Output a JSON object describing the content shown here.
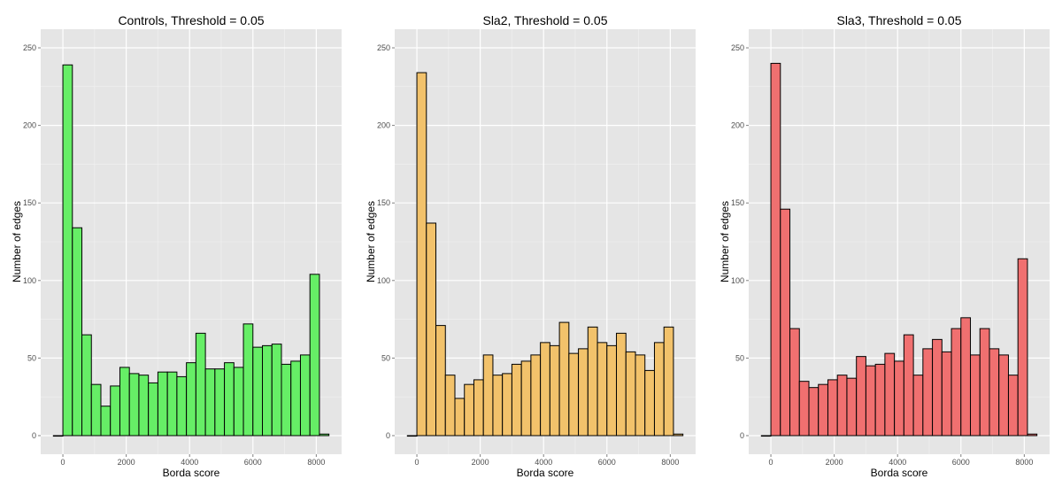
{
  "chart_data": [
    {
      "type": "bar",
      "title": "Controls, Threshold =  0.05",
      "xlabel": "Borda score",
      "ylabel": "Number of edges",
      "color": "#66ee66",
      "binwidth": 300,
      "xlim": [
        -700,
        8800
      ],
      "ylim": [
        -12,
        262
      ],
      "xticks": [
        0,
        2000,
        4000,
        6000,
        8000
      ],
      "yticks": [
        0,
        50,
        100,
        150,
        200,
        250
      ],
      "x": [
        -150,
        150,
        450,
        750,
        1050,
        1350,
        1650,
        1950,
        2250,
        2550,
        2850,
        3150,
        3450,
        3750,
        4050,
        4350,
        4650,
        4950,
        5250,
        5550,
        5850,
        6150,
        6450,
        6750,
        7050,
        7350,
        7650,
        7950,
        8250
      ],
      "values": [
        0,
        239,
        134,
        65,
        33,
        19,
        32,
        44,
        40,
        39,
        34,
        41,
        41,
        38,
        47,
        66,
        43,
        43,
        47,
        44,
        72,
        57,
        58,
        59,
        46,
        48,
        52,
        104,
        1
      ]
    },
    {
      "type": "bar",
      "title": "Sla2, Threshold =  0.05",
      "xlabel": "Borda score",
      "ylabel": "Number of edges",
      "color": "#f2c26b",
      "binwidth": 300,
      "xlim": [
        -700,
        8800
      ],
      "ylim": [
        -12,
        262
      ],
      "xticks": [
        0,
        2000,
        4000,
        6000,
        8000
      ],
      "yticks": [
        0,
        50,
        100,
        150,
        200,
        250
      ],
      "x": [
        -150,
        150,
        450,
        750,
        1050,
        1350,
        1650,
        1950,
        2250,
        2550,
        2850,
        3150,
        3450,
        3750,
        4050,
        4350,
        4650,
        4950,
        5250,
        5550,
        5850,
        6150,
        6450,
        6750,
        7050,
        7350,
        7650,
        7950,
        8250
      ],
      "values": [
        0,
        234,
        137,
        71,
        39,
        24,
        33,
        36,
        52,
        39,
        40,
        46,
        48,
        52,
        60,
        58,
        73,
        53,
        56,
        70,
        60,
        58,
        66,
        54,
        52,
        42,
        60,
        70,
        1
      ]
    },
    {
      "type": "bar",
      "title": "Sla3, Threshold =  0.05",
      "xlabel": "Borda score",
      "ylabel": "Number of edges",
      "color": "#f07070",
      "binwidth": 300,
      "xlim": [
        -700,
        8800
      ],
      "ylim": [
        -12,
        262
      ],
      "xticks": [
        0,
        2000,
        4000,
        6000,
        8000
      ],
      "yticks": [
        0,
        50,
        100,
        150,
        200,
        250
      ],
      "x": [
        -150,
        150,
        450,
        750,
        1050,
        1350,
        1650,
        1950,
        2250,
        2550,
        2850,
        3150,
        3450,
        3750,
        4050,
        4350,
        4650,
        4950,
        5250,
        5550,
        5850,
        6150,
        6450,
        6750,
        7050,
        7350,
        7650,
        7950,
        8250
      ],
      "values": [
        0,
        240,
        146,
        69,
        35,
        31,
        33,
        36,
        39,
        37,
        51,
        45,
        46,
        53,
        48,
        65,
        39,
        56,
        62,
        54,
        69,
        76,
        52,
        69,
        56,
        52,
        39,
        114,
        1
      ]
    }
  ]
}
